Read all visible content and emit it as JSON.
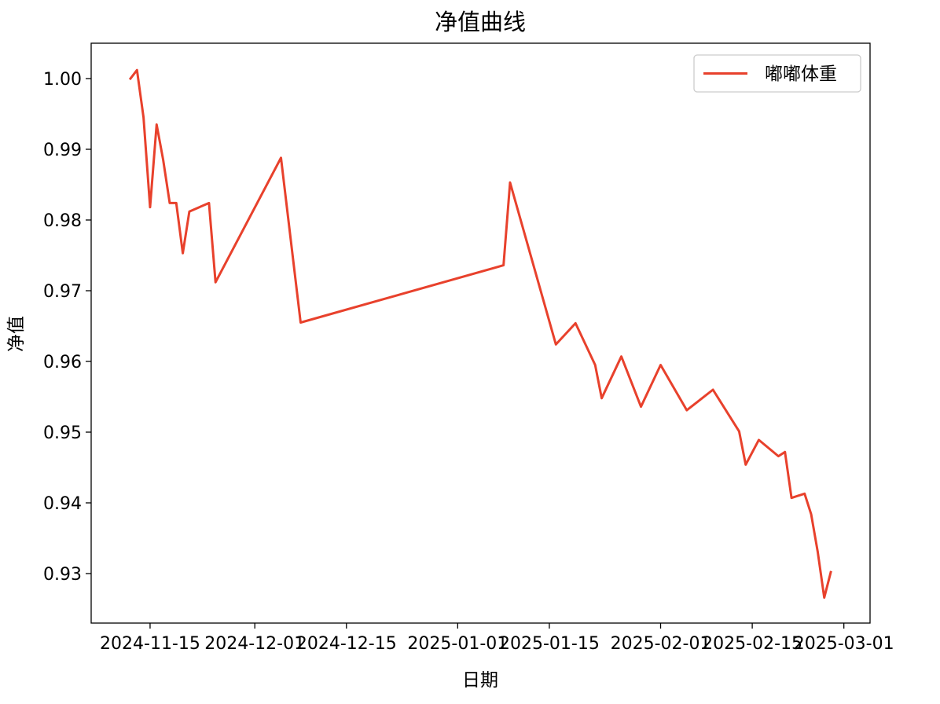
{
  "chart_data": {
    "type": "line",
    "title": "净值曲线",
    "xlabel": "日期",
    "ylabel": "净值",
    "x_ticks": [
      "2024-11-15",
      "2024-12-01",
      "2024-12-15",
      "2025-01-01",
      "2025-01-15",
      "2025-02-01",
      "2025-02-15",
      "2025-03-01"
    ],
    "y_ticks": [
      "0.93",
      "0.94",
      "0.95",
      "0.96",
      "0.97",
      "0.98",
      "0.99",
      "1.00"
    ],
    "xlim": [
      "2024-11-06",
      "2025-03-05"
    ],
    "ylim": [
      0.923,
      1.005
    ],
    "grid": false,
    "legend_position": "top-right",
    "series": [
      {
        "name": "嘟嘟体重",
        "color": "#e8412c",
        "points": [
          [
            "2024-11-12",
            1.0
          ],
          [
            "2024-11-13",
            1.0012
          ],
          [
            "2024-11-14",
            0.9945
          ],
          [
            "2024-11-15",
            0.9818
          ],
          [
            "2024-11-16",
            0.9935
          ],
          [
            "2024-11-17",
            0.9885
          ],
          [
            "2024-11-18",
            0.9824
          ],
          [
            "2024-11-19",
            0.9824
          ],
          [
            "2024-11-20",
            0.9753
          ],
          [
            "2024-11-21",
            0.9812
          ],
          [
            "2024-11-24",
            0.9824
          ],
          [
            "2024-11-25",
            0.9712
          ],
          [
            "2024-12-05",
            0.9888
          ],
          [
            "2024-12-08",
            0.9655
          ],
          [
            "2025-01-08",
            0.9736
          ],
          [
            "2025-01-09",
            0.9853
          ],
          [
            "2025-01-16",
            0.9624
          ],
          [
            "2025-01-19",
            0.9654
          ],
          [
            "2025-01-22",
            0.9595
          ],
          [
            "2025-01-23",
            0.9548
          ],
          [
            "2025-01-26",
            0.9607
          ],
          [
            "2025-01-29",
            0.9536
          ],
          [
            "2025-02-01",
            0.9595
          ],
          [
            "2025-02-05",
            0.9531
          ],
          [
            "2025-02-09",
            0.956
          ],
          [
            "2025-02-13",
            0.9501
          ],
          [
            "2025-02-14",
            0.9454
          ],
          [
            "2025-02-16",
            0.9489
          ],
          [
            "2025-02-19",
            0.9466
          ],
          [
            "2025-02-20",
            0.9472
          ],
          [
            "2025-02-21",
            0.9407
          ],
          [
            "2025-02-23",
            0.9413
          ],
          [
            "2025-02-24",
            0.9384
          ],
          [
            "2025-02-25",
            0.9331
          ],
          [
            "2025-02-26",
            0.9266
          ],
          [
            "2025-02-27",
            0.9302
          ]
        ]
      }
    ]
  }
}
